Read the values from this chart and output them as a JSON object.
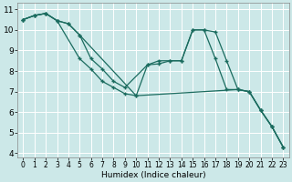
{
  "bg_color": "#cce8e8",
  "grid_color": "#ffffff",
  "line_color": "#1a6b5e",
  "xlabel": "Humidex (Indice chaleur)",
  "xlim": [
    -0.5,
    23.5
  ],
  "ylim": [
    3.8,
    11.3
  ],
  "yticks": [
    4,
    5,
    6,
    7,
    8,
    9,
    10,
    11
  ],
  "xticks": [
    0,
    1,
    2,
    3,
    4,
    5,
    6,
    7,
    8,
    9,
    10,
    11,
    12,
    13,
    14,
    15,
    16,
    17,
    18,
    19,
    20,
    21,
    22,
    23
  ],
  "line1_x": [
    0,
    1,
    2,
    3,
    5,
    6,
    7,
    8,
    9,
    10,
    19,
    20,
    21,
    22,
    23
  ],
  "line1_y": [
    10.5,
    10.7,
    10.8,
    10.45,
    8.6,
    8.1,
    7.5,
    7.2,
    6.9,
    6.8,
    7.1,
    7.0,
    6.1,
    5.3,
    4.3
  ],
  "line2_x": [
    0,
    1,
    2,
    3,
    4,
    5,
    6,
    7,
    8,
    9,
    11,
    12,
    13,
    14,
    15,
    16,
    17,
    18,
    19,
    20,
    21,
    22,
    23
  ],
  "line2_y": [
    10.5,
    10.7,
    10.8,
    10.45,
    10.3,
    9.75,
    8.6,
    8.1,
    7.5,
    7.2,
    8.3,
    8.5,
    8.5,
    8.5,
    10.0,
    10.0,
    8.6,
    7.1,
    7.1,
    7.0,
    6.1,
    5.3,
    4.3
  ],
  "line3_x": [
    0,
    1,
    2,
    3,
    4,
    5,
    10,
    11,
    12,
    13,
    14,
    15,
    16,
    17,
    18,
    19,
    20,
    21,
    22,
    23
  ],
  "line3_y": [
    10.5,
    10.7,
    10.8,
    10.45,
    10.3,
    9.75,
    6.8,
    8.3,
    8.35,
    8.5,
    8.5,
    10.0,
    10.0,
    9.9,
    8.5,
    7.1,
    7.0,
    6.1,
    5.3,
    4.3
  ]
}
